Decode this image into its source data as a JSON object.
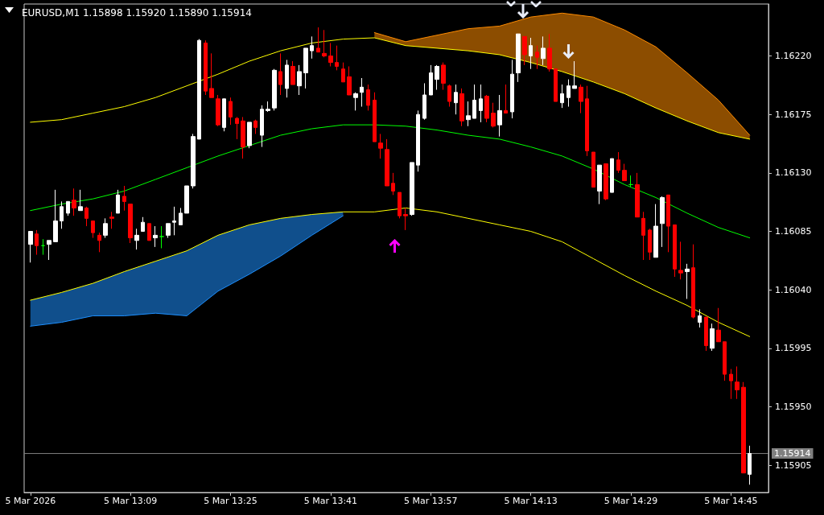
{
  "chart_data": {
    "type": "candlestick",
    "title": "EURUSD,M1 1.15898 1.15920 1.15890 1.15914",
    "x": [
      "2026-03-05T12:53",
      "2026-03-05T12:54",
      "2026-03-05T12:55",
      "2026-03-05T12:56",
      "2026-03-05T12:57",
      "2026-03-05T12:58",
      "2026-03-05T12:59",
      "2026-03-05T13:00",
      "2026-03-05T13:01",
      "2026-03-05T13:02",
      "2026-03-05T13:03",
      "2026-03-05T13:04",
      "2026-03-05T13:05",
      "2026-03-05T13:06",
      "2026-03-05T13:07",
      "2026-03-05T13:08",
      "2026-03-05T13:09",
      "2026-03-05T13:10",
      "2026-03-05T13:11",
      "2026-03-05T13:12",
      "2026-03-05T13:13",
      "2026-03-05T13:14",
      "2026-03-05T13:15",
      "2026-03-05T13:16",
      "2026-03-05T13:17",
      "2026-03-05T13:18",
      "2026-03-05T13:19",
      "2026-03-05T13:20",
      "2026-03-05T13:21",
      "2026-03-05T13:22",
      "2026-03-05T13:23",
      "2026-03-05T13:24",
      "2026-03-05T13:25",
      "2026-03-05T13:26",
      "2026-03-05T13:27",
      "2026-03-05T13:28",
      "2026-03-05T13:29",
      "2026-03-05T13:30",
      "2026-03-05T13:31",
      "2026-03-05T13:32",
      "2026-03-05T13:33",
      "2026-03-05T13:34",
      "2026-03-05T13:35",
      "2026-03-05T13:36",
      "2026-03-05T13:37",
      "2026-03-05T13:38",
      "2026-03-05T13:39",
      "2026-03-05T13:40",
      "2026-03-05T13:41",
      "2026-03-05T13:42",
      "2026-03-05T13:43",
      "2026-03-05T13:44",
      "2026-03-05T13:45",
      "2026-03-05T13:46",
      "2026-03-05T13:47",
      "2026-03-05T13:48",
      "2026-03-05T13:49",
      "2026-03-05T13:50",
      "2026-03-05T13:51",
      "2026-03-05T13:52",
      "2026-03-05T13:53",
      "2026-03-05T13:54",
      "2026-03-05T13:55",
      "2026-03-05T13:56",
      "2026-03-05T13:57",
      "2026-03-05T13:58",
      "2026-03-05T13:59",
      "2026-03-05T14:00",
      "2026-03-05T14:01",
      "2026-03-05T14:02",
      "2026-03-05T14:03",
      "2026-03-05T14:04",
      "2026-03-05T14:05",
      "2026-03-05T14:06",
      "2026-03-05T14:07",
      "2026-03-05T14:08",
      "2026-03-05T14:09",
      "2026-03-05T14:10",
      "2026-03-05T14:11",
      "2026-03-05T14:12",
      "2026-03-05T14:13",
      "2026-03-05T14:14",
      "2026-03-05T14:15",
      "2026-03-05T14:16",
      "2026-03-05T14:17",
      "2026-03-05T14:18",
      "2026-03-05T14:19",
      "2026-03-05T14:20",
      "2026-03-05T14:21",
      "2026-03-05T14:22",
      "2026-03-05T14:23",
      "2026-03-05T14:24",
      "2026-03-05T14:25",
      "2026-03-05T14:26",
      "2026-03-05T14:27",
      "2026-03-05T14:28",
      "2026-03-05T14:29",
      "2026-03-05T14:30",
      "2026-03-05T14:31",
      "2026-03-05T14:32",
      "2026-03-05T14:33",
      "2026-03-05T14:34",
      "2026-03-05T14:35",
      "2026-03-05T14:36",
      "2026-03-05T14:37",
      "2026-03-05T14:38",
      "2026-03-05T14:39",
      "2026-03-05T14:40",
      "2026-03-05T14:41",
      "2026-03-05T14:42",
      "2026-03-05T14:43",
      "2026-03-05T14:44",
      "2026-03-05T14:45",
      "2026-03-05T14:46",
      "2026-03-05T14:47",
      "2026-03-05T14:48"
    ],
    "ohlc": [
      [
        1.16075,
        1.16085,
        1.16061,
        1.16085
      ],
      [
        1.16083,
        1.16086,
        1.16067,
        1.16074
      ],
      [
        1.16074,
        1.16079,
        1.16067,
        1.16074
      ],
      [
        1.16075,
        1.16078,
        1.16063,
        1.16078
      ],
      [
        1.16077,
        1.16117,
        1.16077,
        1.16093
      ],
      [
        1.16093,
        1.16108,
        1.16087,
        1.16104
      ],
      [
        1.16099,
        1.16108,
        1.16097,
        1.16108
      ],
      [
        1.16109,
        1.16118,
        1.16097,
        1.16103
      ],
      [
        1.16101,
        1.16117,
        1.16101,
        1.16104
      ],
      [
        1.16103,
        1.16104,
        1.16089,
        1.16095
      ],
      [
        1.16093,
        1.16093,
        1.1608,
        1.16084
      ],
      [
        1.16082,
        1.16084,
        1.16069,
        1.16078
      ],
      [
        1.16082,
        1.16095,
        1.1608,
        1.16091
      ],
      [
        1.16096,
        1.161,
        1.16087,
        1.16095
      ],
      [
        1.16099,
        1.16117,
        1.16099,
        1.16113
      ],
      [
        1.16112,
        1.1612,
        1.16101,
        1.16108
      ],
      [
        1.16106,
        1.16106,
        1.16076,
        1.1608
      ],
      [
        1.16078,
        1.16087,
        1.16071,
        1.16082
      ],
      [
        1.16085,
        1.16096,
        1.16085,
        1.16092
      ],
      [
        1.16091,
        1.16091,
        1.16078,
        1.16078
      ],
      [
        1.1608,
        1.16089,
        1.16073,
        1.16082
      ],
      [
        1.16081,
        1.16089,
        1.16072,
        1.16081
      ],
      [
        1.16082,
        1.16091,
        1.1608,
        1.16091
      ],
      [
        1.16092,
        1.16104,
        1.16082,
        1.16093
      ],
      [
        1.1609,
        1.16103,
        1.1609,
        1.16099
      ],
      [
        1.16099,
        1.1612,
        1.16099,
        1.1612
      ],
      [
        1.1612,
        1.1616,
        1.16118,
        1.16158
      ],
      [
        1.16156,
        1.16233,
        1.16156,
        1.16232
      ],
      [
        1.1623,
        1.16232,
        1.1619,
        1.16193
      ],
      [
        1.16195,
        1.16222,
        1.16188,
        1.16188
      ],
      [
        1.16187,
        1.1619,
        1.16166,
        1.16167
      ],
      [
        1.16165,
        1.16187,
        1.16162,
        1.16187
      ],
      [
        1.16185,
        1.16188,
        1.16167,
        1.16173
      ],
      [
        1.16172,
        1.16173,
        1.16156,
        1.16168
      ],
      [
        1.1617,
        1.16173,
        1.16141,
        1.1615
      ],
      [
        1.16151,
        1.16169,
        1.16149,
        1.16169
      ],
      [
        1.1617,
        1.16171,
        1.1616,
        1.16165
      ],
      [
        1.16159,
        1.16182,
        1.1615,
        1.16179
      ],
      [
        1.16178,
        1.16185,
        1.16177,
        1.16179
      ],
      [
        1.1618,
        1.1621,
        1.16178,
        1.16209
      ],
      [
        1.16208,
        1.16222,
        1.1619,
        1.16198
      ],
      [
        1.16195,
        1.16217,
        1.16188,
        1.16213
      ],
      [
        1.16212,
        1.16216,
        1.16198,
        1.16198
      ],
      [
        1.16197,
        1.16213,
        1.1619,
        1.16208
      ],
      [
        1.16207,
        1.16226,
        1.16195,
        1.16226
      ],
      [
        1.16224,
        1.16235,
        1.16218,
        1.16228
      ],
      [
        1.16226,
        1.16242,
        1.16223,
        1.16223
      ],
      [
        1.16222,
        1.1624,
        1.16219,
        1.1622
      ],
      [
        1.1622,
        1.1623,
        1.16212,
        1.16215
      ],
      [
        1.16215,
        1.16228,
        1.16209,
        1.16212
      ],
      [
        1.1621,
        1.16215,
        1.162,
        1.162
      ],
      [
        1.16204,
        1.16212,
        1.1619,
        1.1619
      ],
      [
        1.16188,
        1.16192,
        1.16178,
        1.16191
      ],
      [
        1.16192,
        1.16203,
        1.16181,
        1.16196
      ],
      [
        1.16194,
        1.16198,
        1.16178,
        1.16182
      ],
      [
        1.16186,
        1.16192,
        1.16154,
        1.16154
      ],
      [
        1.16153,
        1.1616,
        1.16141,
        1.16149
      ],
      [
        1.16148,
        1.16156,
        1.1612,
        1.1612
      ],
      [
        1.16122,
        1.1613,
        1.16113,
        1.16116
      ],
      [
        1.16115,
        1.16115,
        1.16095,
        1.16097
      ],
      [
        1.16098,
        1.16103,
        1.16086,
        1.16097
      ],
      [
        1.16098,
        1.16138,
        1.16097,
        1.16138
      ],
      [
        1.16136,
        1.16178,
        1.16131,
        1.16175
      ],
      [
        1.16172,
        1.16199,
        1.16171,
        1.1619
      ],
      [
        1.1619,
        1.16213,
        1.1619,
        1.16207
      ],
      [
        1.16202,
        1.16213,
        1.16194,
        1.16212
      ],
      [
        1.16213,
        1.16215,
        1.16194,
        1.16199
      ],
      [
        1.16197,
        1.16198,
        1.16181,
        1.16185
      ],
      [
        1.16184,
        1.16198,
        1.16175,
        1.16192
      ],
      [
        1.16191,
        1.16195,
        1.16166,
        1.1617
      ],
      [
        1.16171,
        1.16185,
        1.16166,
        1.16174
      ],
      [
        1.16172,
        1.16198,
        1.16172,
        1.16186
      ],
      [
        1.16178,
        1.16198,
        1.16169,
        1.16187
      ],
      [
        1.16189,
        1.1619,
        1.16169,
        1.16172
      ],
      [
        1.16176,
        1.16184,
        1.16165,
        1.16166
      ],
      [
        1.16167,
        1.1619,
        1.16158,
        1.16178
      ],
      [
        1.16178,
        1.16198,
        1.16176,
        1.16176
      ],
      [
        1.16177,
        1.16217,
        1.16172,
        1.16206
      ],
      [
        1.16207,
        1.16237,
        1.162,
        1.16237
      ],
      [
        1.16235,
        1.16235,
        1.16213,
        1.16221
      ],
      [
        1.1622,
        1.16234,
        1.1621,
        1.16228
      ],
      [
        1.16223,
        1.16228,
        1.1621,
        1.16219
      ],
      [
        1.16218,
        1.16235,
        1.16213,
        1.16226
      ],
      [
        1.16226,
        1.16237,
        1.16208,
        1.1621
      ],
      [
        1.1621,
        1.1621,
        1.16185,
        1.16185
      ],
      [
        1.16184,
        1.16198,
        1.1618,
        1.16191
      ],
      [
        1.16188,
        1.16202,
        1.16181,
        1.16197
      ],
      [
        1.16195,
        1.16216,
        1.16195,
        1.16197
      ],
      [
        1.16196,
        1.16198,
        1.16176,
        1.16185
      ],
      [
        1.16187,
        1.16197,
        1.16143,
        1.16147
      ],
      [
        1.16146,
        1.16146,
        1.16119,
        1.16119
      ],
      [
        1.16116,
        1.16136,
        1.16106,
        1.16136
      ],
      [
        1.16137,
        1.16137,
        1.16109,
        1.1611
      ],
      [
        1.16115,
        1.16141,
        1.16115,
        1.16141
      ],
      [
        1.1614,
        1.16146,
        1.1613,
        1.16132
      ],
      [
        1.16132,
        1.16137,
        1.16124,
        1.16124
      ],
      [
        1.16121,
        1.16128,
        1.16119,
        1.16121
      ],
      [
        1.16121,
        1.1613,
        1.16096,
        1.16096
      ],
      [
        1.16095,
        1.161,
        1.16063,
        1.16082
      ],
      [
        1.16086,
        1.16087,
        1.16063,
        1.16069
      ],
      [
        1.16065,
        1.16106,
        1.16065,
        1.16089
      ],
      [
        1.16091,
        1.16112,
        1.16073,
        1.16111
      ],
      [
        1.16113,
        1.16113,
        1.16069,
        1.16089
      ],
      [
        1.1609,
        1.1609,
        1.1605,
        1.16056
      ],
      [
        1.16055,
        1.16077,
        1.16048,
        1.16053
      ],
      [
        1.16054,
        1.1606,
        1.16033,
        1.16056
      ],
      [
        1.16057,
        1.16075,
        1.16018,
        1.16019
      ],
      [
        1.16015,
        1.16025,
        1.16011,
        1.1602
      ],
      [
        1.16019,
        1.16019,
        1.15993,
        1.15997
      ],
      [
        1.15995,
        1.16014,
        1.15993,
        1.1601
      ],
      [
        1.16009,
        1.16026,
        1.16,
        1.16
      ],
      [
        1.16,
        1.16,
        1.1597,
        1.15975
      ],
      [
        1.15975,
        1.15979,
        1.15956,
        1.1597
      ],
      [
        1.15969,
        1.15981,
        1.15956,
        1.15963
      ],
      [
        1.15965,
        1.15969,
        1.15899,
        1.15899
      ],
      [
        1.15898,
        1.1592,
        1.1589,
        1.15914
      ]
    ],
    "colors": [
      "#ffffff",
      "#ff0000",
      "#00ff00",
      "#ffffff",
      "#ffffff",
      "#ffffff",
      "#ffffff",
      "#ff0000",
      "#ffffff",
      "#ff0000",
      "#ff0000",
      "#ff0000",
      "#ffffff",
      "#ff0000",
      "#ffffff",
      "#ff0000",
      "#ff0000",
      "#ffffff",
      "#ffffff",
      "#ff0000",
      "#ffffff",
      "#00ff00",
      "#ffffff",
      "#ffffff",
      "#ffffff",
      "#ffffff",
      "#ffffff",
      "#ffffff",
      "#ff0000",
      "#ff0000",
      "#ff0000",
      "#ffffff",
      "#ff0000",
      "#ff0000",
      "#ff0000",
      "#ffffff",
      "#ff0000",
      "#ffffff",
      "#ffffff",
      "#ffffff",
      "#ff0000",
      "#ffffff",
      "#ff0000",
      "#ffffff",
      "#ffffff",
      "#ffffff",
      "#ff0000",
      "#ff0000",
      "#ff0000",
      "#ff0000",
      "#ff0000",
      "#ff0000",
      "#ffffff",
      "#ffffff",
      "#ff0000",
      "#ff0000",
      "#ff0000",
      "#ff0000",
      "#ff0000",
      "#ff0000",
      "#ff0000",
      "#ffffff",
      "#ffffff",
      "#ffffff",
      "#ffffff",
      "#ffffff",
      "#ff0000",
      "#ff0000",
      "#ffffff",
      "#ff0000",
      "#ffffff",
      "#ffffff",
      "#ffffff",
      "#ff0000",
      "#ff0000",
      "#ffffff",
      "#ff0000",
      "#ffffff",
      "#ffffff",
      "#ff0000",
      "#ffffff",
      "#ff0000",
      "#ffffff",
      "#ff0000",
      "#ff0000",
      "#ffffff",
      "#ffffff",
      "#ffffff",
      "#ff0000",
      "#ff0000",
      "#ff0000",
      "#ffffff",
      "#ff0000",
      "#ffffff",
      "#ff0000",
      "#ff0000",
      "#00ff00",
      "#ff0000",
      "#ff0000",
      "#ff0000",
      "#ffffff",
      "#ffffff",
      "#ff0000",
      "#ff0000",
      "#ff0000",
      "#ffffff",
      "#ff0000",
      "#ffffff",
      "#ff0000",
      "#ffffff",
      "#ff0000",
      "#ff0000",
      "#ff0000",
      "#ff0000",
      "#ff0000",
      "#ffffff"
    ],
    "series": [
      {
        "type": "line",
        "color": "#ffff00",
        "x": [
          "2026-03-05T12:53",
          "2026-03-05T12:58",
          "2026-03-05T13:03",
          "2026-03-05T13:08",
          "2026-03-05T13:13",
          "2026-03-05T13:18",
          "2026-03-05T13:23",
          "2026-03-05T13:28",
          "2026-03-05T13:33",
          "2026-03-05T13:38",
          "2026-03-05T13:43",
          "2026-03-05T13:48",
          "2026-03-05T13:53",
          "2026-03-05T13:58",
          "2026-03-05T14:03",
          "2026-03-05T14:08",
          "2026-03-05T14:13",
          "2026-03-05T14:18",
          "2026-03-05T14:23",
          "2026-03-05T14:28",
          "2026-03-05T14:33",
          "2026-03-05T14:38",
          "2026-03-05T14:43",
          "2026-03-05T14:48"
        ],
        "values": [
          1.16169,
          1.16171,
          1.16176,
          1.16181,
          1.16188,
          1.16197,
          1.16206,
          1.16216,
          1.16224,
          1.1623,
          1.16233,
          1.16234,
          1.16228,
          1.16226,
          1.16224,
          1.16221,
          1.16215,
          1.16208,
          1.162,
          1.16191,
          1.1618,
          1.1617,
          1.16161,
          1.16156
        ]
      },
      {
        "type": "line",
        "color": "#00ff00",
        "x": [
          "2026-03-05T12:53",
          "2026-03-05T12:58",
          "2026-03-05T13:03",
          "2026-03-05T13:08",
          "2026-03-05T13:13",
          "2026-03-05T13:18",
          "2026-03-05T13:23",
          "2026-03-05T13:28",
          "2026-03-05T13:33",
          "2026-03-05T13:38",
          "2026-03-05T13:43",
          "2026-03-05T13:48",
          "2026-03-05T13:53",
          "2026-03-05T13:58",
          "2026-03-05T14:03",
          "2026-03-05T14:08",
          "2026-03-05T14:13",
          "2026-03-05T14:18",
          "2026-03-05T14:23",
          "2026-03-05T14:28",
          "2026-03-05T14:33",
          "2026-03-05T14:38",
          "2026-03-05T14:43",
          "2026-03-05T14:48"
        ],
        "values": [
          1.16101,
          1.16106,
          1.1611,
          1.16116,
          1.16125,
          1.16134,
          1.16143,
          1.16151,
          1.16159,
          1.16164,
          1.16167,
          1.16167,
          1.16166,
          1.16163,
          1.16159,
          1.16156,
          1.1615,
          1.16143,
          1.16133,
          1.16121,
          1.16111,
          1.16099,
          1.16088,
          1.1608
        ]
      },
      {
        "type": "line",
        "color": "#ffff00",
        "x": [
          "2026-03-05T12:53",
          "2026-03-05T12:58",
          "2026-03-05T13:03",
          "2026-03-05T13:08",
          "2026-03-05T13:13",
          "2026-03-05T13:18",
          "2026-03-05T13:23",
          "2026-03-05T13:28",
          "2026-03-05T13:33",
          "2026-03-05T13:38",
          "2026-03-05T13:43",
          "2026-03-05T13:48",
          "2026-03-05T13:53",
          "2026-03-05T13:58",
          "2026-03-05T14:03",
          "2026-03-05T14:08",
          "2026-03-05T14:13",
          "2026-03-05T14:18",
          "2026-03-05T14:23",
          "2026-03-05T14:28",
          "2026-03-05T14:33",
          "2026-03-05T14:38",
          "2026-03-05T14:43",
          "2026-03-05T14:48"
        ],
        "values": [
          1.16032,
          1.16038,
          1.16045,
          1.16054,
          1.16062,
          1.1607,
          1.16082,
          1.1609,
          1.16095,
          1.16098,
          1.161,
          1.161,
          1.16103,
          1.161,
          1.16095,
          1.1609,
          1.16085,
          1.16077,
          1.16064,
          1.16051,
          1.16039,
          1.16028,
          1.16015,
          1.16004
        ]
      },
      {
        "type": "line",
        "color": "#ff8c00",
        "x": [
          "2026-03-05T13:48",
          "2026-03-05T13:53",
          "2026-03-05T13:58",
          "2026-03-05T14:03",
          "2026-03-05T14:08",
          "2026-03-05T14:13",
          "2026-03-05T14:18",
          "2026-03-05T14:23",
          "2026-03-05T14:28",
          "2026-03-05T14:33",
          "2026-03-05T14:38",
          "2026-03-05T14:43",
          "2026-03-05T14:48"
        ],
        "values": [
          1.16238,
          1.16231,
          1.16236,
          1.16241,
          1.16243,
          1.1625,
          1.16253,
          1.1625,
          1.1624,
          1.16227,
          1.16207,
          1.16186,
          1.16159
        ],
        "lower": [
          1.16234,
          1.16228,
          1.16226,
          1.16224,
          1.16221,
          1.16215,
          1.16208,
          1.162,
          1.16191,
          1.1618,
          1.1617,
          1.16161,
          1.16156
        ],
        "upper": [
          1.16238,
          1.16231,
          1.16236,
          1.16241,
          1.16243,
          1.1625,
          1.16253,
          1.1625,
          1.1624,
          1.16227,
          1.16207,
          1.16186,
          1.16159
        ]
      },
      {
        "type": "line",
        "color": "#1e90ff",
        "x": [
          "2026-03-05T12:53",
          "2026-03-05T12:58",
          "2026-03-05T13:03",
          "2026-03-05T13:08",
          "2026-03-05T13:13",
          "2026-03-05T13:18",
          "2026-03-05T13:23",
          "2026-03-05T13:28",
          "2026-03-05T13:33",
          "2026-03-05T13:38",
          "2026-03-05T13:43"
        ],
        "values": [
          1.16012,
          1.16015,
          1.1602,
          1.1602,
          1.16022,
          1.1602,
          1.16039,
          1.16052,
          1.16066,
          1.16082,
          1.16097
        ],
        "lower": [
          1.16012,
          1.16015,
          1.1602,
          1.1602,
          1.16022,
          1.1602,
          1.16039,
          1.16052,
          1.16066,
          1.16082,
          1.16097
        ],
        "upper": [
          1.16032,
          1.16038,
          1.16045,
          1.16054,
          1.16062,
          1.1607,
          1.16082,
          1.1609,
          1.16095,
          1.16098,
          1.161
        ]
      }
    ],
    "xlim": [
      "2026-03-05T12:52",
      "2026-03-05T14:51"
    ],
    "xticks": [
      {
        "value": "2026-03-05T12:53",
        "label": "5 Mar 2026"
      },
      {
        "value": "2026-03-05T13:09",
        "label": "5 Mar 13:09"
      },
      {
        "value": "2026-03-05T13:25",
        "label": "5 Mar 13:25"
      },
      {
        "value": "2026-03-05T13:41",
        "label": "5 Mar 13:41"
      },
      {
        "value": "2026-03-05T13:57",
        "label": "5 Mar 13:57"
      },
      {
        "value": "2026-03-05T14:13",
        "label": "5 Mar 14:13"
      },
      {
        "value": "2026-03-05T14:29",
        "label": "5 Mar 14:29"
      },
      {
        "value": "2026-03-05T14:45",
        "label": "5 Mar 14:45"
      }
    ],
    "ylim": [
      1.15884,
      1.1626
    ],
    "yticks": [
      1.15905,
      {
        "value": 1.1595,
        "label": "1.15950"
      },
      1.15995,
      {
        "value": 1.1604,
        "label": "1.16040"
      },
      1.16085,
      {
        "value": 1.1613,
        "label": "1.16130"
      },
      1.16175,
      {
        "value": 1.1622,
        "label": "1.16220"
      }
    ],
    "ref_lines": [
      {
        "axis": "y",
        "value": 1.15914,
        "label": "1.15914",
        "color": "#808080"
      }
    ],
    "grid": false
  }
}
